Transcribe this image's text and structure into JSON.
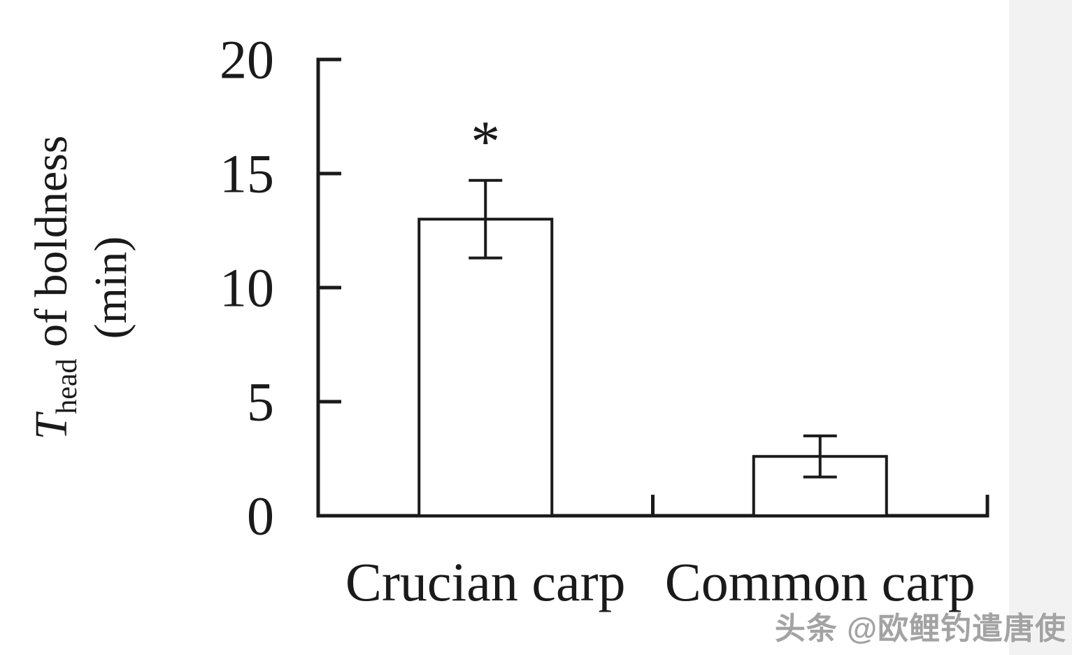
{
  "page": {
    "background": "#ffffff",
    "right_strip_color": "#f2f2f2"
  },
  "watermark": {
    "text": "头条 @欧鲤钓遣唐使",
    "color": "#a3a3a3"
  },
  "chart_data": {
    "type": "bar",
    "title": "",
    "xlabel": "",
    "ylabel": "T_head of boldness (min)",
    "ylabel_line1": {
      "variable": "T",
      "subscript": "head",
      "rest": " of boldness"
    },
    "ylabel_line2": "(min)",
    "categories": [
      "Crucian carp",
      "Common carp"
    ],
    "values": [
      13.0,
      2.6
    ],
    "errors": [
      1.7,
      0.9
    ],
    "significance": [
      "*",
      ""
    ],
    "ylim": [
      0,
      20
    ],
    "yticks": [
      0,
      5,
      10,
      15,
      20
    ],
    "grid": false,
    "legend": false,
    "bar_fill": "#ffffff",
    "bar_stroke": "#1a1a1a",
    "axis_color": "#1a1a1a",
    "text_color": "#1a1a1a"
  }
}
